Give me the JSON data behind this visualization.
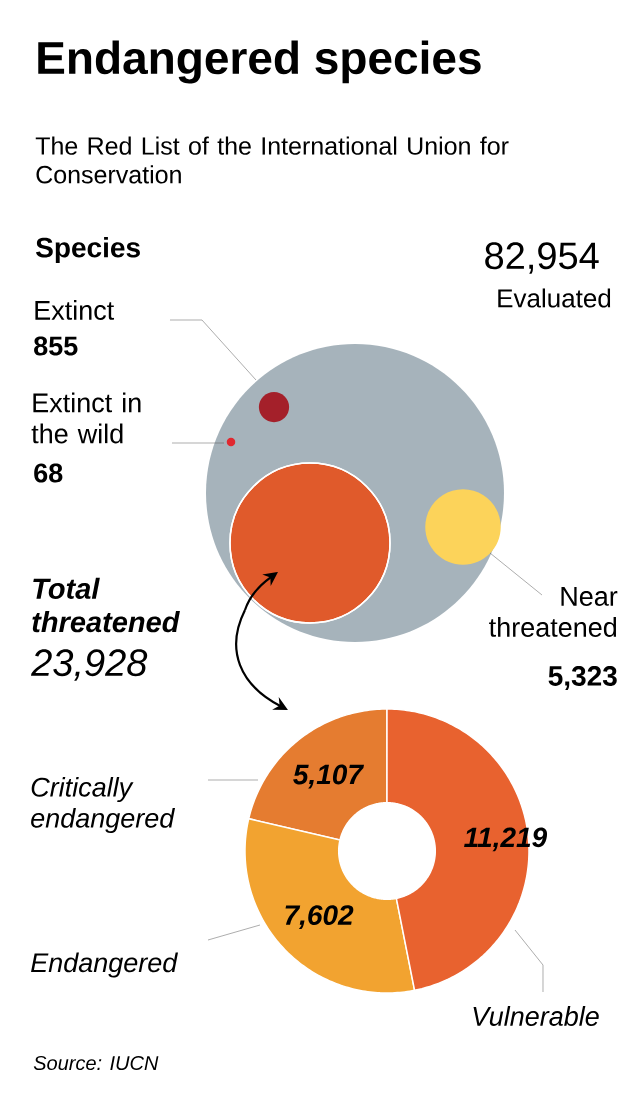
{
  "chart_data": [
    {
      "type": "other",
      "title": "Endangered species",
      "subtitle": "The Red List of the International Union for Conservation",
      "annotations": [
        "Species"
      ],
      "categories": [
        "Evaluated",
        "Extinct",
        "Extinct in the wild",
        "Total threatened",
        "Near threatened"
      ],
      "values": [
        82954,
        855,
        68,
        23928,
        5323
      ],
      "value_labels": [
        "82,954",
        "855",
        "68",
        "23,928",
        "5,323"
      ],
      "colors": [
        "#a6b3bb",
        "#a4202a",
        "#e0282f",
        "#e05a2b",
        "#fcd35a"
      ]
    },
    {
      "type": "donut",
      "categories": [
        "Critically endangered",
        "Endangered",
        "Vulnerable"
      ],
      "values": [
        5107,
        7602,
        11219
      ],
      "value_labels": [
        "5,107",
        "7,602",
        "11,219"
      ],
      "colors": [
        "#e57c30",
        "#f2a330",
        "#e8622f"
      ],
      "annotations": [
        "Source: IUCN"
      ]
    }
  ]
}
